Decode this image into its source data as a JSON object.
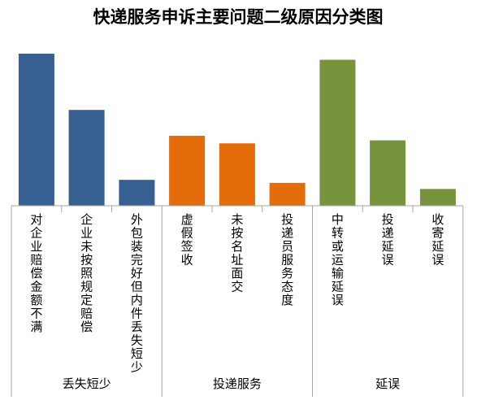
{
  "chart_data": {
    "type": "bar",
    "title": "快递服务申诉主要问题二级原因分类图",
    "xlabel": "",
    "ylabel": "",
    "categories": [
      "对企业赔偿金额不满",
      "企业未按照规定赔偿",
      "外包装完好但内件丢失短少",
      "虚假签收",
      "未按名址面交",
      "投递员服务态度",
      "中转或运输延误",
      "投递延误",
      "收寄延误"
    ],
    "groups": [
      {
        "name": "丢失短少",
        "categories": [
          "对企业赔偿金额不满",
          "企业未按照规定赔偿",
          "外包装完好但内件丢失短少"
        ],
        "color": "#375F92"
      },
      {
        "name": "投递服务",
        "categories": [
          "虚假签收",
          "未按名址面交",
          "投递员服务态度"
        ],
        "color": "#E46C0A"
      },
      {
        "name": "延误",
        "categories": [
          "中转或运输延误",
          "投递延误",
          "收寄延误"
        ],
        "color": "#77933C"
      }
    ],
    "values": [
      100,
      63,
      17,
      46,
      41,
      15,
      96,
      43,
      11
    ],
    "ylim": [
      0,
      100
    ],
    "grid": false,
    "legend": "none"
  }
}
